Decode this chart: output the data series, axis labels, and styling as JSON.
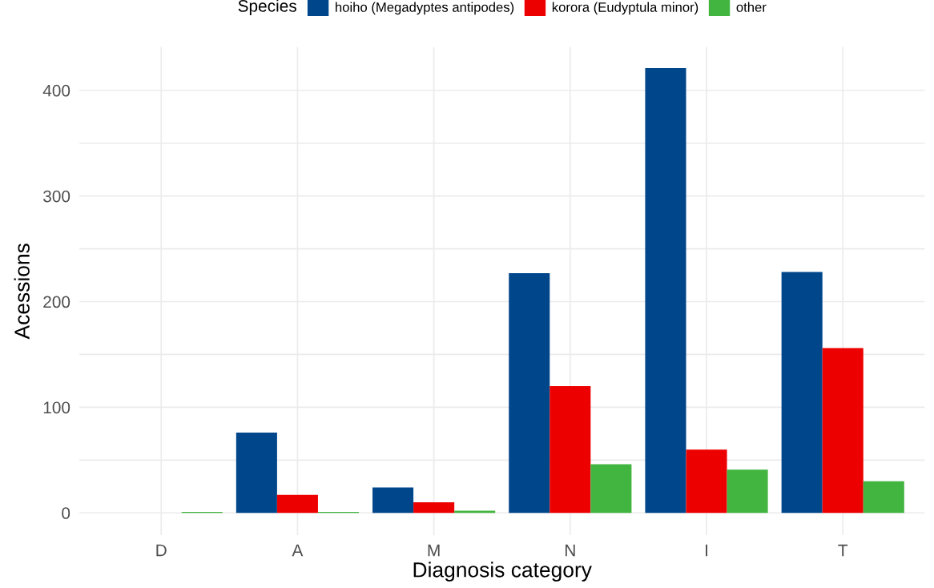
{
  "chart_data": {
    "type": "bar",
    "xlabel": "Diagnosis category",
    "ylabel": "Acessions",
    "legend_title": "Species",
    "categories": [
      "D",
      "A",
      "M",
      "N",
      "I",
      "T"
    ],
    "series": [
      {
        "name": "hoiho (Megadyptes antipodes)",
        "color": "#00468b",
        "values": [
          0,
          76,
          24,
          227,
          421,
          228
        ]
      },
      {
        "name": "korora (Eudyptula minor)",
        "color": "#ed0000",
        "values": [
          0,
          17,
          10,
          120,
          60,
          156
        ]
      },
      {
        "name": "other",
        "color": "#42b540",
        "values": [
          1,
          1,
          2,
          46,
          41,
          30
        ]
      }
    ],
    "ylim": [
      -21,
      441
    ],
    "yticks": [
      0,
      {
        "value": 50,
        "label": null
      },
      100,
      {
        "value": 150,
        "label": null
      },
      200,
      {
        "value": 250,
        "label": null
      },
      300,
      {
        "value": 350,
        "label": null
      },
      400
    ],
    "grid": true,
    "legend": "top"
  }
}
